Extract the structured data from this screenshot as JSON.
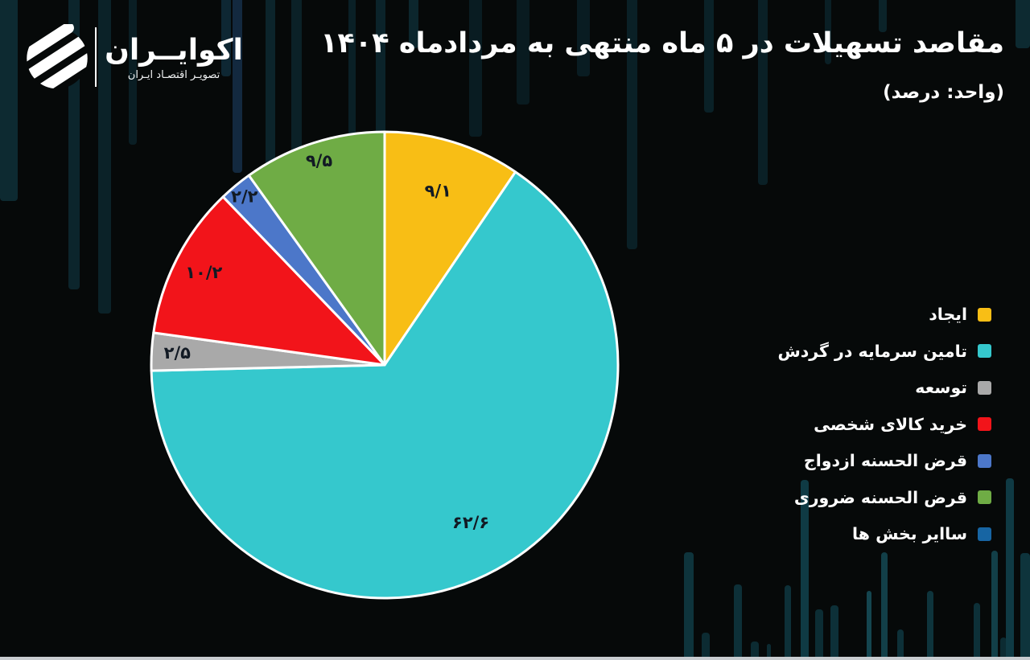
{
  "brand": {
    "name": "اکوایــران",
    "tagline": "تصویـر اقتصـاد ایـران"
  },
  "header": {
    "title": "مقاصد تسهیلات در ۵ ماه منتهی به مردادماه ۱۴۰۴",
    "unit_note": "(واحد: درصد)"
  },
  "chart_data": {
    "type": "pie",
    "title": "مقاصد تسهیلات در ۵ ماه منتهی به مردادماه ۱۴۰۴",
    "unit_label": "درصد",
    "start_angle_deg": 0,
    "direction": "clockwise",
    "legend_position": "right",
    "label_text_color": "#121a24",
    "slice_stroke_color": "#ffffff",
    "slices": [
      {
        "label": "ایجاد",
        "value": 9.1,
        "value_fa": "۹/۱",
        "color": "#f8be15"
      },
      {
        "label": "تامین سرمایه در گردش",
        "value": 62.6,
        "value_fa": "۶۲/۶",
        "color": "#35c8cd"
      },
      {
        "label": "توسعه",
        "value": 2.5,
        "value_fa": "۲/۵",
        "color": "#a9a9a9"
      },
      {
        "label": "خرید کالای شخصی",
        "value": 10.2,
        "value_fa": "۱۰/۲",
        "color": "#f2141a"
      },
      {
        "label": "قرض الحسنه ازدواج",
        "value": 2.2,
        "value_fa": "۲/۲",
        "color": "#4c77c9"
      },
      {
        "label": "قرض الحسنه ضروری",
        "value": 9.5,
        "value_fa": "۹/۵",
        "color": "#6fac45"
      },
      {
        "label": "ساایر بخش ها",
        "value": null,
        "value_fa": "",
        "color": "#1765a3"
      }
    ]
  }
}
